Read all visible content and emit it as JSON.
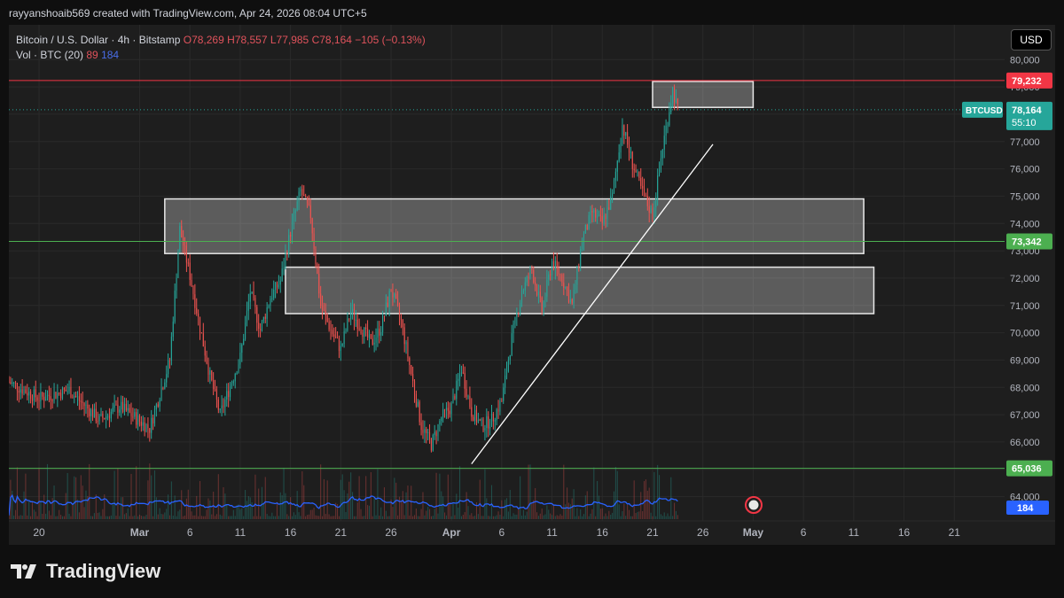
{
  "credit": "rayyanshoaib569 created with TradingView.com, Apr 24, 2026 08:04 UTC+5",
  "legend": {
    "symbol": "Bitcoin / U.S. Dollar · 4h · Bitstamp",
    "o": "O78,269",
    "h": "H78,557",
    "l": "L77,985",
    "c": "C78,164",
    "change": "−105 (−0.13%)",
    "vol_label": "Vol · BTC (20)",
    "vol_a": "89",
    "vol_b": "184"
  },
  "currency": "USD",
  "brand": "TradingView",
  "colors": {
    "up": "#26a69a",
    "down": "#ef5350",
    "bg": "#1e1e1e",
    "grid": "#2a2a2a",
    "hline_red": "#f23645",
    "hline_green": "#4caf50",
    "volume_ma": "#2962ff"
  },
  "chart_data": {
    "type": "candlestick",
    "timeframe": "4h",
    "y_ticks": [
      64000,
      65000,
      66000,
      67000,
      68000,
      69000,
      70000,
      71000,
      72000,
      73000,
      74000,
      75000,
      76000,
      77000,
      78000,
      79000,
      80000
    ],
    "y_tick_labels": [
      "64,000",
      "65,000",
      "66,000",
      "67,000",
      "68,000",
      "69,000",
      "70,000",
      "71,000",
      "72,000",
      "73,000",
      "74,000",
      "75,000",
      "76,000",
      "77,000",
      "78,000",
      "79,000",
      "80,000"
    ],
    "ylim": [
      63500,
      80300
    ],
    "x_ticks": [
      "20",
      "Mar",
      "6",
      "11",
      "16",
      "21",
      "26",
      "Apr",
      "6",
      "11",
      "16",
      "21",
      "26",
      "May",
      "6",
      "11",
      "16",
      "21"
    ],
    "x_tick_days": [
      -9,
      1,
      6,
      11,
      16,
      21,
      26,
      32,
      37,
      42,
      47,
      52,
      57,
      62,
      67,
      72,
      77,
      82
    ],
    "xlim_days": [
      -12,
      87
    ],
    "last_price_day": 54.5,
    "price_path": [
      [
        -12,
        68200
      ],
      [
        -9,
        67600
      ],
      [
        -6,
        67900
      ],
      [
        -3,
        66800
      ],
      [
        -1,
        67300
      ],
      [
        2,
        66500
      ],
      [
        4,
        69000
      ],
      [
        5,
        73800
      ],
      [
        6,
        72100
      ],
      [
        7,
        70200
      ],
      [
        8,
        68400
      ],
      [
        9,
        67000
      ],
      [
        11,
        69100
      ],
      [
        12,
        71500
      ],
      [
        13,
        70100
      ],
      [
        14,
        71300
      ],
      [
        15,
        71900
      ],
      [
        16,
        73700
      ],
      [
        17,
        75200
      ],
      [
        18,
        74300
      ],
      [
        19,
        71000
      ],
      [
        20,
        70100
      ],
      [
        21,
        69400
      ],
      [
        22,
        70800
      ],
      [
        24,
        69600
      ],
      [
        25,
        70200
      ],
      [
        26,
        71600
      ],
      [
        27,
        70400
      ],
      [
        28,
        68500
      ],
      [
        29,
        66600
      ],
      [
        30,
        65900
      ],
      [
        31,
        66900
      ],
      [
        32,
        67300
      ],
      [
        33,
        68700
      ],
      [
        34,
        67100
      ],
      [
        35,
        66600
      ],
      [
        36,
        66800
      ],
      [
        37,
        67500
      ],
      [
        38,
        69800
      ],
      [
        39,
        71500
      ],
      [
        40,
        72300
      ],
      [
        41,
        70800
      ],
      [
        42,
        72600
      ],
      [
        43,
        72000
      ],
      [
        44,
        71000
      ],
      [
        45,
        73400
      ],
      [
        46,
        74400
      ],
      [
        47,
        74000
      ],
      [
        48,
        75000
      ],
      [
        49,
        77600
      ],
      [
        50,
        76200
      ],
      [
        51,
        75100
      ],
      [
        52,
        74300
      ],
      [
        53,
        76800
      ],
      [
        54,
        78900
      ],
      [
        54.5,
        78164
      ]
    ],
    "volume": {
      "series_name": "Vol · BTC (20)",
      "ma_values_labels": [
        "89",
        "184"
      ]
    },
    "horizontal_lines": [
      {
        "price": 79232,
        "label": "79,232",
        "color": "#f23645"
      },
      {
        "price": 73342,
        "label": "73,342",
        "color": "#4caf50"
      },
      {
        "price": 65036,
        "label": "65,036",
        "color": "#4caf50"
      }
    ],
    "zones": [
      {
        "day_from": 3.5,
        "day_to": 73,
        "low": 72900,
        "high": 74900
      },
      {
        "day_from": 15.5,
        "day_to": 74,
        "low": 70700,
        "high": 72400
      },
      {
        "day_from": 52,
        "day_to": 62,
        "low": 78250,
        "high": 79200
      }
    ],
    "trendline": {
      "from": {
        "day": 34,
        "price": 65200
      },
      "to": {
        "day": 58,
        "price": 76900
      }
    },
    "price_labels": {
      "symbol": "BTCUSD",
      "last": "78,164",
      "countdown": "55:10",
      "volume_last": "184"
    }
  }
}
